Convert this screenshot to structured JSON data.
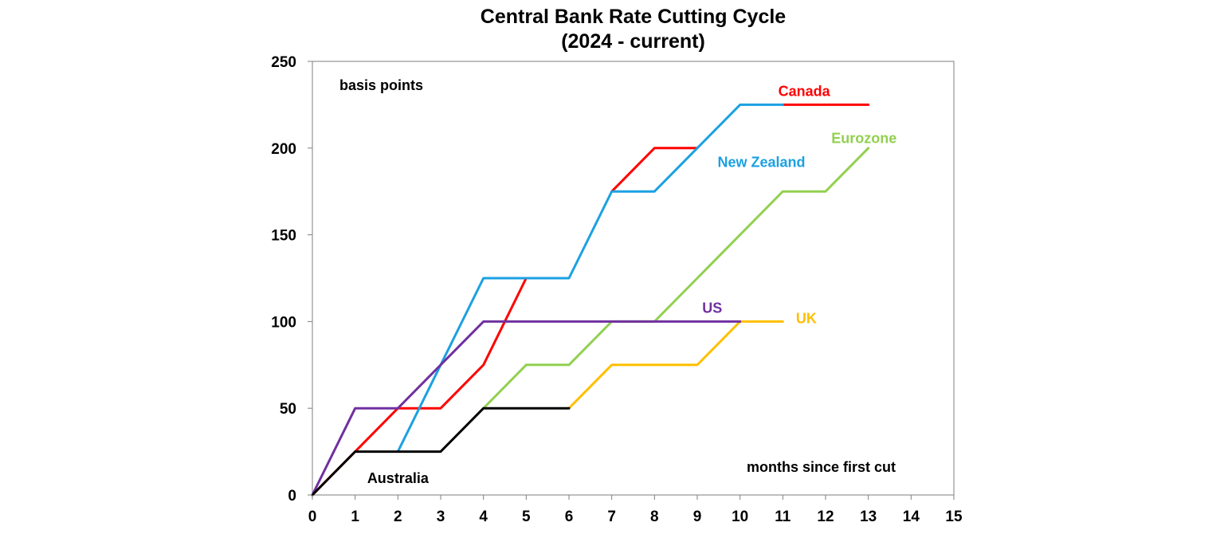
{
  "chart_data": {
    "type": "line",
    "title": "Central Bank Rate Cutting Cycle",
    "subtitle": "(2024 - current)",
    "ylabel": "basis points",
    "xlabel": "months since first cut",
    "xlim": [
      0,
      15
    ],
    "ylim": [
      0,
      250
    ],
    "x_ticks": [
      0,
      1,
      2,
      3,
      4,
      5,
      6,
      7,
      8,
      9,
      10,
      11,
      12,
      13,
      14,
      15
    ],
    "y_ticks": [
      0,
      50,
      100,
      150,
      200,
      250
    ],
    "grid": false,
    "legend": "direct labels on lines",
    "series": [
      {
        "name": "Canada",
        "color": "#ff0000",
        "x": [
          0,
          1,
          2,
          3,
          4,
          5
        ],
        "values": [
          0,
          25,
          50,
          50,
          75,
          125
        ]
      },
      {
        "name": "Canada",
        "color": "#ff0000",
        "x": [
          7,
          8,
          9
        ],
        "values": [
          175,
          200,
          200
        ]
      },
      {
        "name": "Canada",
        "color": "#ff0000",
        "x": [
          11,
          12,
          13
        ],
        "values": [
          225,
          225,
          225
        ]
      },
      {
        "name": "New Zealand",
        "color": "#1ba1e2",
        "x": [
          2,
          3,
          4,
          5,
          6,
          7,
          8,
          9,
          10,
          11
        ],
        "values": [
          25,
          75,
          125,
          125,
          125,
          175,
          175,
          200,
          225,
          225
        ]
      },
      {
        "name": "Eurozone",
        "color": "#92d050",
        "x": [
          4,
          5,
          6,
          7,
          8,
          9,
          10,
          11,
          12,
          13
        ],
        "values": [
          50,
          75,
          75,
          100,
          100,
          125,
          150,
          175,
          175,
          200
        ]
      },
      {
        "name": "UK",
        "color": "#ffc000",
        "x": [
          6,
          7,
          8,
          9,
          10,
          11
        ],
        "values": [
          50,
          75,
          75,
          75,
          100,
          100
        ]
      },
      {
        "name": "US",
        "color": "#7030a0",
        "x": [
          0,
          1,
          2,
          3,
          4,
          5,
          6,
          7,
          8,
          9,
          10
        ],
        "values": [
          0,
          50,
          50,
          75,
          100,
          100,
          100,
          100,
          100,
          100,
          100
        ]
      },
      {
        "name": "Australia",
        "color": "#000000",
        "x": [
          0,
          1,
          2,
          3,
          4,
          5,
          6
        ],
        "values": [
          0,
          25,
          25,
          25,
          50,
          50,
          50
        ]
      }
    ],
    "series_labels": [
      {
        "name": "Canada",
        "color": "#ff0000",
        "x": 11.5,
        "y": 230
      },
      {
        "name": "New Zealand",
        "color": "#1ba1e2",
        "x": 10.5,
        "y": 189
      },
      {
        "name": "Eurozone",
        "color": "#92d050",
        "x": 12.9,
        "y": 203
      },
      {
        "name": "US",
        "color": "#7030a0",
        "x": 9.35,
        "y": 105
      },
      {
        "name": "UK",
        "color": "#ffc000",
        "x": 11.55,
        "y": 99
      },
      {
        "name": "Australia",
        "color": "#000000",
        "x": 2.0,
        "y": 7
      }
    ]
  }
}
